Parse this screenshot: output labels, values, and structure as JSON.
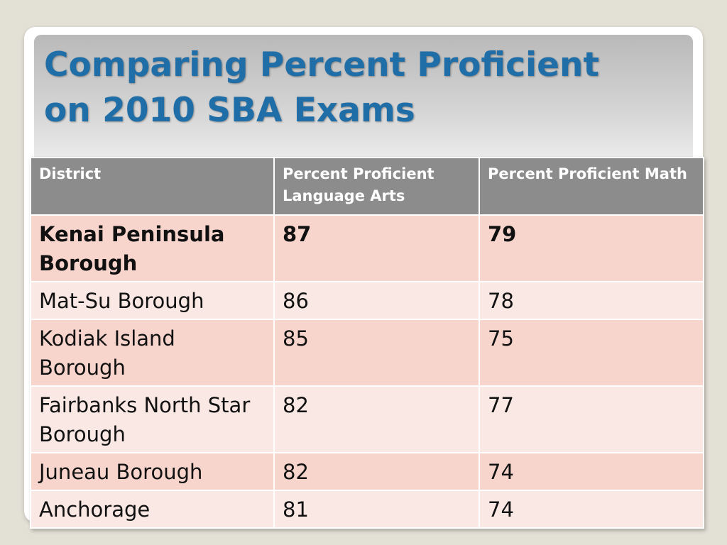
{
  "slide": {
    "title": "Comparing Percent Proficient\non 2010 SBA Exams"
  },
  "table": {
    "headers": [
      "District",
      "Percent Proficient Language Arts",
      "Percent Proficient Math"
    ],
    "rows": [
      {
        "district": "Kenai Peninsula Borough",
        "language_arts": "87",
        "math": "79"
      },
      {
        "district": "Mat-Su Borough",
        "language_arts": "86",
        "math": "78"
      },
      {
        "district": "Kodiak Island Borough",
        "language_arts": "85",
        "math": "75"
      },
      {
        "district": "Fairbanks North Star Borough",
        "language_arts": "82",
        "math": "77"
      },
      {
        "district": "Juneau Borough",
        "language_arts": "82",
        "math": "74"
      },
      {
        "district": "Anchorage",
        "language_arts": "81",
        "math": "74"
      }
    ]
  },
  "colors": {
    "title": "#1f6ea8",
    "header_background": "#8c8c8c",
    "row_band_dark": "#f7d5cc",
    "row_band_light": "#fae8e4",
    "background": "#e3e0d6"
  }
}
